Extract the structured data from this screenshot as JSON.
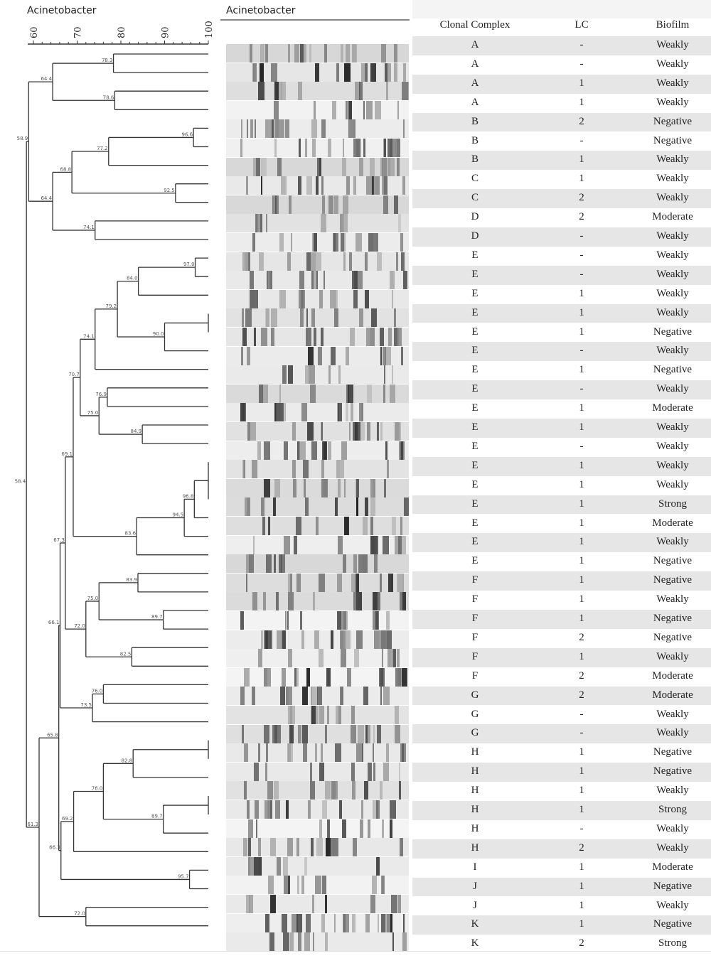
{
  "dendrogram_title": "Acinetobacter",
  "gel_title": "Acinetobacter",
  "axis": {
    "ticks": [
      "60",
      "70",
      "80",
      "90",
      "100"
    ],
    "min": 60,
    "max": 100
  },
  "tree": {
    "v": "58.4",
    "c": [
      {
        "v": "58.9",
        "c": [
          {
            "v": "64.4",
            "c": [
              {
                "v": "78.3",
                "c": [
                  0,
                  1
                ]
              },
              {
                "v": "78.6",
                "c": [
                  2,
                  3
                ]
              }
            ]
          },
          {
            "v": "64.4",
            "c": [
              {
                "v": "68.8",
                "c": [
                  {
                    "v": "77.2",
                    "c": [
                      {
                        "v": "96.6",
                        "c": [
                          4,
                          5
                        ]
                      },
                      6
                    ]
                  },
                  {
                    "v": "92.5",
                    "c": [
                      7,
                      8
                    ]
                  }
                ]
              },
              {
                "v": "74.1",
                "c": [
                  9,
                  10
                ]
              }
            ]
          }
        ]
      },
      {
        "v": "61.3",
        "c": [
          {
            "v": "65.8",
            "c": [
              {
                "v": "66.1",
                "c": [
                  {
                    "v": "67.3",
                    "c": [
                      {
                        "v": "69.1",
                        "c": [
                          {
                            "v": "70.7",
                            "c": [
                              {
                                "v": "74.1",
                                "c": [
                                  {
                                    "v": "79.2",
                                    "c": [
                                      {
                                        "v": "84.0",
                                        "c": [
                                          {
                                            "v": "97.0",
                                            "c": [
                                              11,
                                              12
                                            ]
                                          },
                                          13
                                        ]
                                      },
                                      {
                                        "v": "90.0",
                                        "c": [
                                          {
                                            "v": "100",
                                            "c": [
                                              14,
                                              15
                                            ]
                                          },
                                          16
                                        ]
                                      }
                                    ]
                                  },
                                  17
                                ]
                              },
                              {
                                "v": "75.0",
                                "c": [
                                  {
                                    "v": "76.9",
                                    "c": [
                                      18,
                                      19
                                    ]
                                  },
                                  {
                                    "v": "84.9",
                                    "c": [
                                      20,
                                      21
                                    ]
                                  }
                                ]
                              }
                            ]
                          },
                          {
                            "v": "83.6",
                            "c": [
                              {
                                "v": "94.5",
                                "c": [
                                  {
                                    "v": "96.8",
                                    "c": [
                                      {
                                        "v": "100",
                                        "c": [
                                          22,
                                          23,
                                          24
                                        ]
                                      },
                                      25
                                    ]
                                  },
                                  26
                                ]
                              },
                              27
                            ]
                          }
                        ]
                      },
                      {
                        "v": "72.0",
                        "c": [
                          {
                            "v": "75.0",
                            "c": [
                              {
                                "v": "83.9",
                                "c": [
                                  28,
                                  29
                                ]
                              },
                              {
                                "v": "89.7",
                                "c": [
                                  30,
                                  31
                                ]
                              }
                            ]
                          },
                          {
                            "v": "82.5",
                            "c": [
                              32,
                              33
                            ]
                          }
                        ]
                      }
                    ]
                  },
                  {
                    "v": "73.5",
                    "c": [
                      {
                        "v": "76.0",
                        "c": [
                          34,
                          35
                        ]
                      },
                      36
                    ]
                  }
                ]
              },
              {
                "v": "66.3",
                "c": [
                  {
                    "v": "69.2",
                    "c": [
                      {
                        "v": "76.0",
                        "c": [
                          {
                            "v": "82.8",
                            "c": [
                              {
                                "v": "100",
                                "c": [
                                  37,
                                  38
                                ]
                              },
                              39
                            ]
                          },
                          {
                            "v": "89.7",
                            "c": [
                              {
                                "v": "100",
                                "c": [
                                  40,
                                  41
                                ]
                              },
                              42
                            ]
                          }
                        ]
                      },
                      43
                    ]
                  },
                  {
                    "v": "95.7",
                    "c": [
                      44,
                      45
                    ]
                  }
                ]
              }
            ]
          },
          {
            "v": "72.0",
            "c": [
              46,
              47
            ]
          }
        ]
      }
    ]
  },
  "table": {
    "headers": {
      "cc": "Clonal Complex",
      "lc": "LC",
      "biofilm": "Biofilm"
    },
    "rows": [
      [
        "A",
        "-",
        "Weakly"
      ],
      [
        "A",
        "-",
        "Weakly"
      ],
      [
        "A",
        "1",
        "Weakly"
      ],
      [
        "A",
        "1",
        "Weakly"
      ],
      [
        "B",
        "2",
        "Negative"
      ],
      [
        "B",
        "-",
        "Negative"
      ],
      [
        "B",
        "1",
        "Weakly"
      ],
      [
        "C",
        "1",
        "Weakly"
      ],
      [
        "C",
        "2",
        "Weakly"
      ],
      [
        "D",
        "2",
        "Moderate"
      ],
      [
        "D",
        "-",
        "Weakly"
      ],
      [
        "E",
        "-",
        "Weakly"
      ],
      [
        "E",
        "-",
        "Weakly"
      ],
      [
        "E",
        "1",
        "Weakly"
      ],
      [
        "E",
        "1",
        "Weakly"
      ],
      [
        "E",
        "1",
        "Negative"
      ],
      [
        "E",
        "-",
        "Weakly"
      ],
      [
        "E",
        "1",
        "Negative"
      ],
      [
        "E",
        "-",
        "Weakly"
      ],
      [
        "E",
        "1",
        "Moderate"
      ],
      [
        "E",
        "1",
        "Weakly"
      ],
      [
        "E",
        "-",
        "Weakly"
      ],
      [
        "E",
        "1",
        "Weakly"
      ],
      [
        "E",
        "1",
        "Weakly"
      ],
      [
        "E",
        "1",
        "Strong"
      ],
      [
        "E",
        "1",
        "Moderate"
      ],
      [
        "E",
        "1",
        "Weakly"
      ],
      [
        "E",
        "1",
        "Negative"
      ],
      [
        "F",
        "1",
        "Negative"
      ],
      [
        "F",
        "1",
        "Weakly"
      ],
      [
        "F",
        "1",
        "Negative"
      ],
      [
        "F",
        "2",
        "Negative"
      ],
      [
        "F",
        "1",
        "Weakly"
      ],
      [
        "F",
        "2",
        "Moderate"
      ],
      [
        "G",
        "2",
        "Moderate"
      ],
      [
        "G",
        "-",
        "Weakly"
      ],
      [
        "G",
        "-",
        "Weakly"
      ],
      [
        "H",
        "1",
        "Negative"
      ],
      [
        "H",
        "1",
        "Negative"
      ],
      [
        "H",
        "1",
        "Weakly"
      ],
      [
        "H",
        "1",
        "Strong"
      ],
      [
        "H",
        "-",
        "Weakly"
      ],
      [
        "H",
        "2",
        "Weakly"
      ],
      [
        "I",
        "1",
        "Moderate"
      ],
      [
        "J",
        "1",
        "Negative"
      ],
      [
        "J",
        "1",
        "Weakly"
      ],
      [
        "K",
        "1",
        "Negative"
      ],
      [
        "K",
        "2",
        "Strong"
      ]
    ]
  },
  "colors": {
    "row_shade": "#e6e6e6",
    "line": "#333333"
  }
}
